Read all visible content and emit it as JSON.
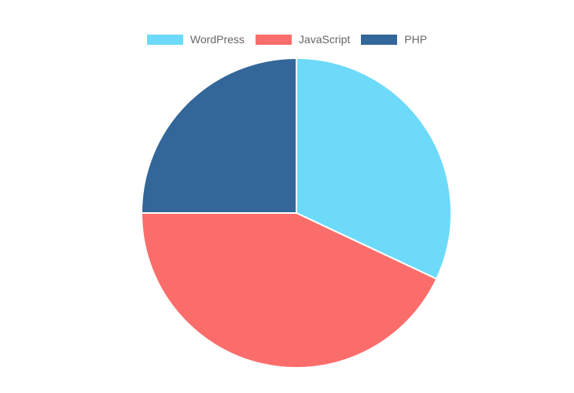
{
  "chart_data": {
    "type": "pie",
    "title": "",
    "legend_position": "top",
    "categories": [
      "WordPress",
      "JavaScript",
      "PHP"
    ],
    "values": [
      32,
      43,
      25
    ],
    "colors": [
      "#6cdaf8",
      "#fb6d6b",
      "#336699"
    ],
    "slice_border_color": "#ffffff"
  }
}
